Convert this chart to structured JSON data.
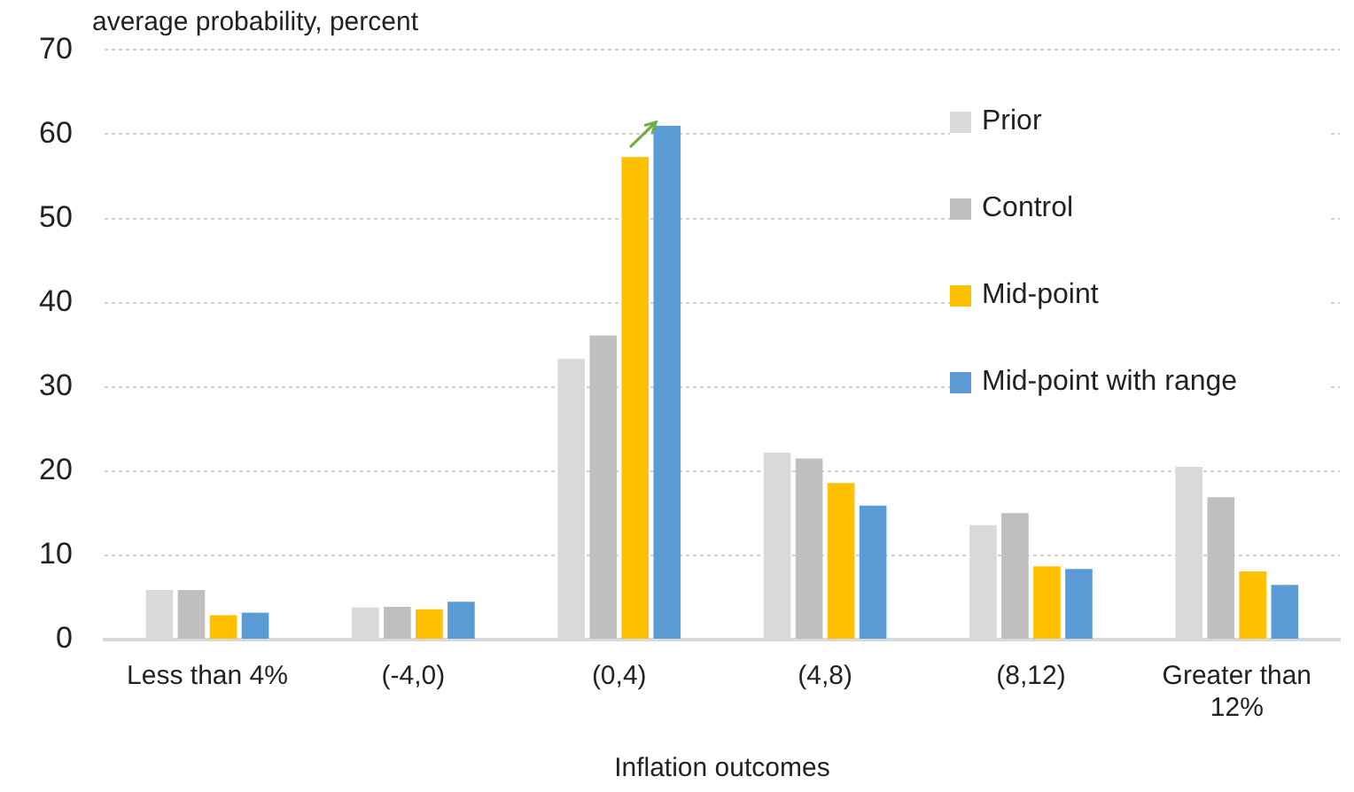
{
  "chart_data": {
    "type": "bar",
    "ylabel": "average probability, percent",
    "xlabel": "Inflation outcomes",
    "categories": [
      "Less than 4%",
      "(-4,0)",
      "(0,4)",
      "(4,8)",
      "(8,12)",
      "Greater than 12%"
    ],
    "series": [
      {
        "name": "Prior",
        "color": "#d9d9d9",
        "values": [
          5.9,
          3.8,
          33.3,
          22.2,
          13.6,
          20.5
        ]
      },
      {
        "name": "Control",
        "color": "#bfbfbf",
        "values": [
          5.9,
          3.9,
          36.1,
          21.5,
          15.0,
          16.9
        ]
      },
      {
        "name": "Mid-point",
        "color": "#ffc000",
        "values": [
          2.9,
          3.6,
          57.3,
          18.6,
          8.7,
          8.1
        ]
      },
      {
        "name": "Mid-point with range",
        "color": "#5b9bd5",
        "values": [
          3.2,
          4.5,
          61.0,
          15.9,
          8.4,
          6.5
        ]
      }
    ],
    "ylim": [
      0,
      70
    ],
    "yticks": [
      0,
      10,
      20,
      30,
      40,
      50,
      60,
      70
    ],
    "grid": "y",
    "legend": "top right"
  }
}
